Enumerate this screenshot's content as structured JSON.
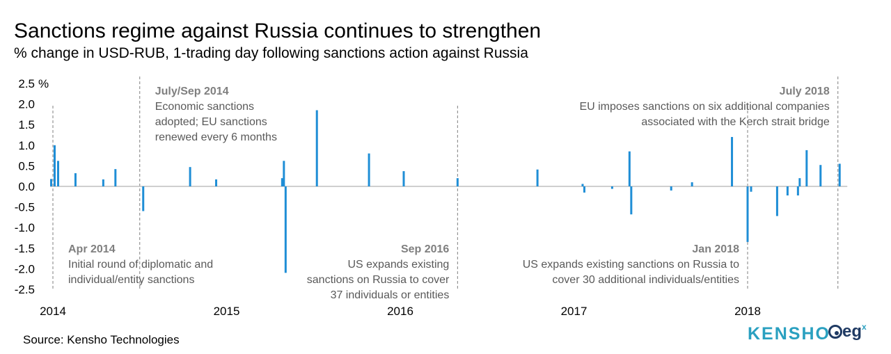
{
  "title": "Sanctions regime against Russia continues to strengthen",
  "subtitle": "% change in USD-RUB, 1-trading day following sanctions action against Russia",
  "source": "Source: Kensho Technologies",
  "logos": {
    "kensho": "KENSHO",
    "egx": "eg",
    "egx_sup": "x"
  },
  "colors": {
    "bar": "#1f8ed6",
    "axis": "#bfbfbf",
    "annotation_line": "#7f7f7f",
    "annotation_head": "#7f7f7f",
    "annotation_text": "#595959"
  },
  "chart_data": {
    "type": "bar",
    "title": "Sanctions regime against Russia continues to strengthen",
    "ylabel": "",
    "y_unit_label": "%",
    "ylim": [
      -2.5,
      2.5
    ],
    "y_ticks": [
      2.5,
      2.0,
      1.5,
      1.0,
      0.5,
      0.0,
      -0.5,
      -1.0,
      -1.5,
      -2.0,
      -2.5
    ],
    "y_tick_labels": [
      "2.5",
      "2.0",
      "1.5",
      "1.0",
      "0.5",
      "0.0",
      "-0.5",
      "-1.0",
      "-1.5",
      "-2.0",
      "-2.5"
    ],
    "x_range": [
      2014.0,
      2018.55
    ],
    "x_ticks": [
      2014,
      2015,
      2016,
      2017,
      2018
    ],
    "x_tick_labels": [
      "2014",
      "2015",
      "2016",
      "2017",
      "2018"
    ],
    "grid": false,
    "series": [
      {
        "points": [
          {
            "x": 2013.99,
            "y": 0.18
          },
          {
            "x": 2014.01,
            "y": 1.0
          },
          {
            "x": 2014.03,
            "y": 0.62
          },
          {
            "x": 2014.13,
            "y": 0.32
          },
          {
            "x": 2014.29,
            "y": 0.17
          },
          {
            "x": 2014.36,
            "y": 0.42
          },
          {
            "x": 2014.52,
            "y": -0.6
          },
          {
            "x": 2014.79,
            "y": 0.47
          },
          {
            "x": 2014.94,
            "y": 0.17
          },
          {
            "x": 2015.32,
            "y": 0.2
          },
          {
            "x": 2015.33,
            "y": 0.62
          },
          {
            "x": 2015.34,
            "y": -2.1
          },
          {
            "x": 2015.52,
            "y": 1.85
          },
          {
            "x": 2015.82,
            "y": 0.8
          },
          {
            "x": 2016.02,
            "y": 0.37
          },
          {
            "x": 2016.33,
            "y": 0.2
          },
          {
            "x": 2016.79,
            "y": 0.41
          },
          {
            "x": 2017.05,
            "y": 0.06
          },
          {
            "x": 2017.06,
            "y": -0.15
          },
          {
            "x": 2017.22,
            "y": -0.06
          },
          {
            "x": 2017.32,
            "y": 0.85
          },
          {
            "x": 2017.33,
            "y": -0.68
          },
          {
            "x": 2017.56,
            "y": -0.1
          },
          {
            "x": 2017.68,
            "y": 0.1
          },
          {
            "x": 2017.91,
            "y": 1.2
          },
          {
            "x": 2018.0,
            "y": -1.35
          },
          {
            "x": 2018.02,
            "y": -0.13
          },
          {
            "x": 2018.17,
            "y": -0.72
          },
          {
            "x": 2018.23,
            "y": -0.22
          },
          {
            "x": 2018.29,
            "y": -0.22
          },
          {
            "x": 2018.3,
            "y": 0.2
          },
          {
            "x": 2018.34,
            "y": 0.88
          },
          {
            "x": 2018.42,
            "y": 0.52
          },
          {
            "x": 2018.53,
            "y": 0.55
          }
        ]
      }
    ],
    "annotations": [
      {
        "x": 2014.0,
        "label": "Apr 2014",
        "text": [
          "Initial round of diplomatic and",
          "individual/entity sanctions"
        ],
        "position": "bottom",
        "align": "left"
      },
      {
        "x": 2014.5,
        "label": "July/Sep 2014",
        "text": [
          "Economic sanctions",
          "adopted;  EU sanctions",
          "renewed every 6 months"
        ],
        "position": "top",
        "align": "left"
      },
      {
        "x": 2016.33,
        "label": "Sep 2016",
        "text": [
          "US expands existing",
          "sanctions on Russia to cover",
          "37 individuals or entities"
        ],
        "position": "bottom",
        "align": "right"
      },
      {
        "x": 2018.0,
        "label": "Jan 2018",
        "text": [
          "US expands existing sanctions on Russia to",
          "cover 30 additional individuals/entities"
        ],
        "position": "bottom",
        "align": "right"
      },
      {
        "x": 2018.52,
        "label": "July  2018",
        "text": [
          "EU imposes sanctions on six additional companies",
          "associated with the Kerch strait bridge"
        ],
        "position": "top",
        "align": "right"
      }
    ]
  }
}
